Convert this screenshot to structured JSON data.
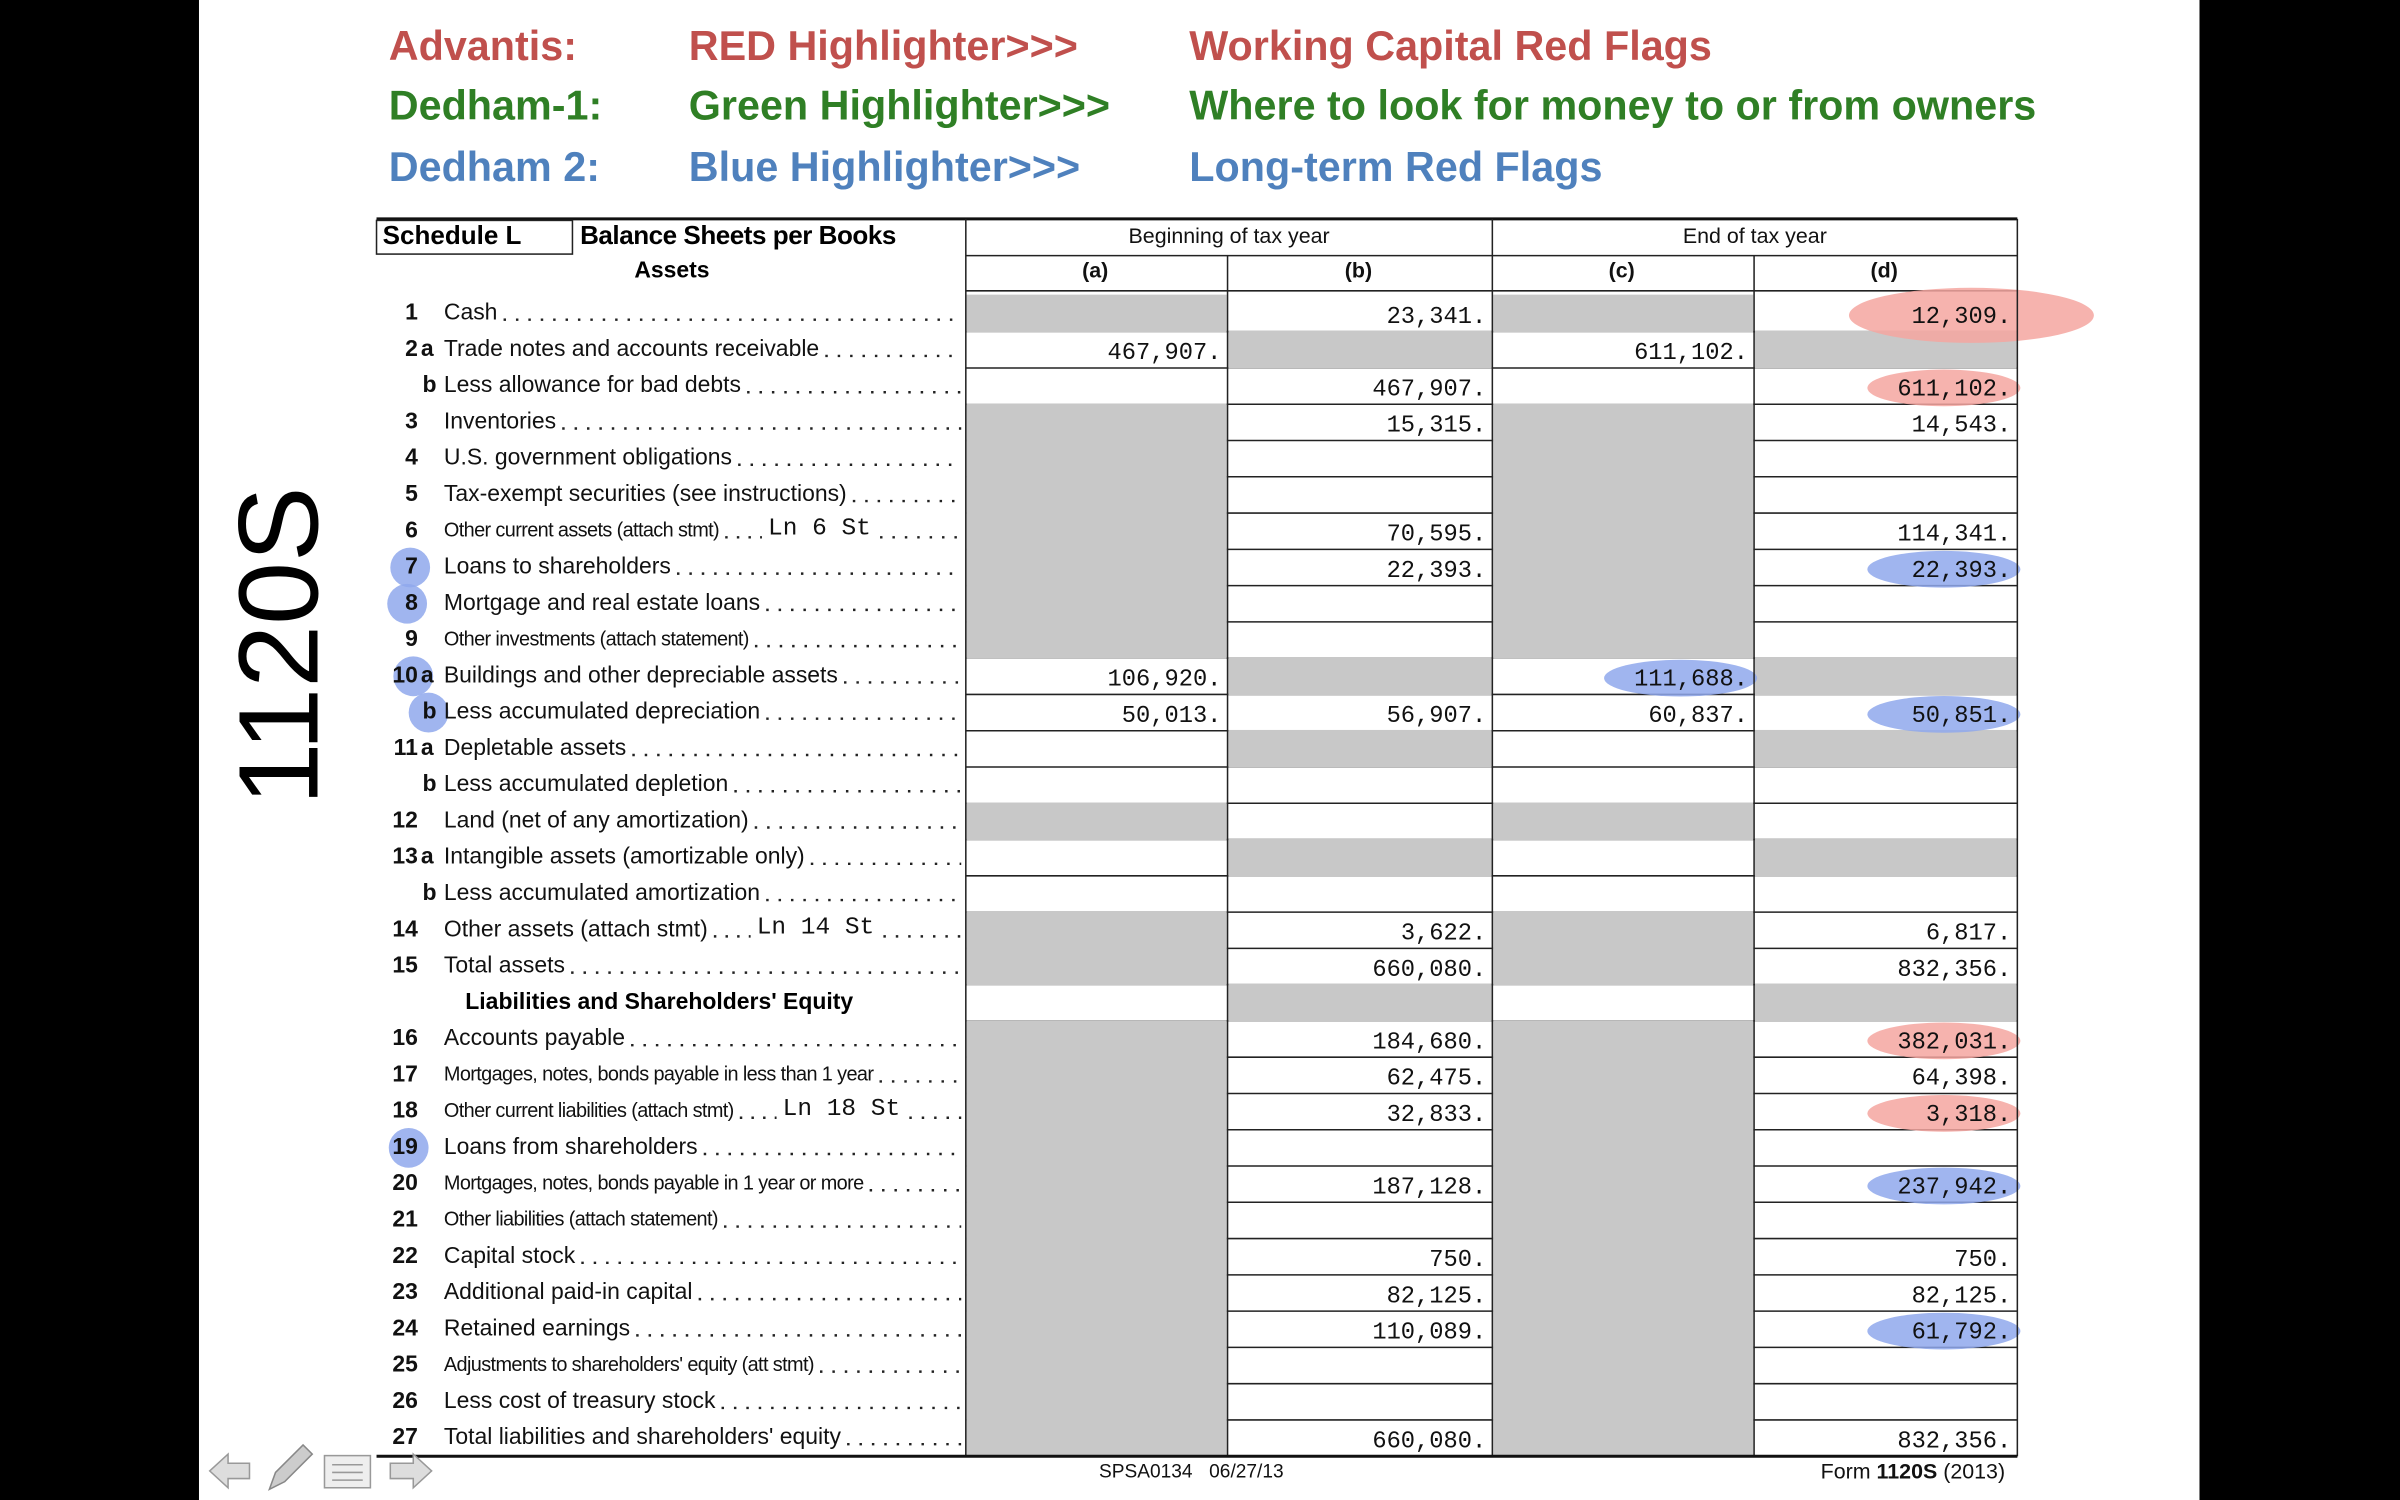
{
  "header": {
    "lines": [
      {
        "name": "Advantis:",
        "tool": "RED Highlighter>>>",
        "meaning": "Working Capital Red Flags"
      },
      {
        "name": "Dedham-1:",
        "tool": "Green Highlighter>>>",
        "meaning": "Where to look for money to or from owners"
      },
      {
        "name": "Dedham 2:",
        "tool": "Blue Highlighter>>>",
        "meaning": "Long-term Red Flags"
      }
    ]
  },
  "side_label": "1120S",
  "form": {
    "schedule": "Schedule L",
    "title": "Balance Sheets per Books",
    "column_groups": [
      "Beginning of tax year",
      "End of tax year"
    ],
    "columns": [
      "(a)",
      "(b)",
      "(c)",
      "(d)"
    ],
    "assets_heading": "Assets",
    "assets_rows": [
      {
        "num": "1",
        "label": "Cash",
        "b": "23,341.",
        "d": "12,309."
      },
      {
        "num": "2",
        "sub": "a",
        "label": "Trade notes and accounts receivable",
        "a": "467,907.",
        "c": "611,102."
      },
      {
        "sub": "b",
        "label": "Less allowance for bad debts",
        "b": "467,907.",
        "d": "611,102."
      },
      {
        "num": "3",
        "label": "Inventories",
        "b": "15,315.",
        "d": "14,543."
      },
      {
        "num": "4",
        "label": "U.S. government obligations"
      },
      {
        "num": "5",
        "label": "Tax-exempt securities (see instructions)"
      },
      {
        "num": "6",
        "label": "Other current assets (attach stmt)",
        "note": "Ln 6 St",
        "b": "70,595.",
        "d": "114,341."
      },
      {
        "num": "7",
        "label": "Loans to shareholders",
        "b": "22,393.",
        "d": "22,393."
      },
      {
        "num": "8",
        "label": "Mortgage and real estate loans"
      },
      {
        "num": "9",
        "label": "Other investments (attach statement)"
      },
      {
        "num": "10",
        "sub": "a",
        "label": "Buildings and other depreciable assets",
        "a": "106,920.",
        "c": "111,688."
      },
      {
        "sub": "b",
        "label": "Less accumulated depreciation",
        "a": "50,013.",
        "b": "56,907.",
        "c": "60,837.",
        "d": "50,851."
      },
      {
        "num": "11",
        "sub": "a",
        "label": "Depletable assets"
      },
      {
        "sub": "b",
        "label": "Less accumulated depletion"
      },
      {
        "num": "12",
        "label": "Land (net of any amortization)"
      },
      {
        "num": "13",
        "sub": "a",
        "label": "Intangible assets (amortizable only)"
      },
      {
        "sub": "b",
        "label": "Less accumulated amortization"
      },
      {
        "num": "14",
        "label": "Other assets (attach stmt)",
        "note": "Ln 14 St",
        "b": "3,622.",
        "d": "6,817."
      },
      {
        "num": "15",
        "label": "Total assets",
        "b": "660,080.",
        "d": "832,356."
      }
    ],
    "liabilities_heading": "Liabilities and Shareholders' Equity",
    "liability_rows": [
      {
        "num": "16",
        "label": "Accounts payable",
        "b": "184,680.",
        "d": "382,031."
      },
      {
        "num": "17",
        "label": "Mortgages, notes, bonds payable in less than 1 year",
        "b": "62,475.",
        "d": "64,398."
      },
      {
        "num": "18",
        "label": "Other current liabilities (attach stmt)",
        "note": "Ln 18 St",
        "b": "32,833.",
        "d": "3,318."
      },
      {
        "num": "19",
        "label": "Loans from shareholders"
      },
      {
        "num": "20",
        "label": "Mortgages, notes, bonds payable in 1 year or more",
        "b": "187,128.",
        "d": "237,942."
      },
      {
        "num": "21",
        "label": "Other liabilities (attach statement)"
      },
      {
        "num": "22",
        "label": "Capital stock",
        "b": "750.",
        "d": "750."
      },
      {
        "num": "23",
        "label": "Additional paid-in capital",
        "b": "82,125.",
        "d": "82,125."
      },
      {
        "num": "24",
        "label": "Retained earnings",
        "b": "110,089.",
        "d": "61,792."
      },
      {
        "num": "25",
        "label": "Adjustments to shareholders' equity (att stmt)"
      },
      {
        "num": "26",
        "label": "Less cost of treasury stock"
      },
      {
        "num": "27",
        "label": "Total liabilities and shareholders' equity",
        "b": "660,080.",
        "d": "832,356."
      }
    ],
    "footer": {
      "code": "SPSA0134",
      "date": "06/27/13",
      "form_prefix": "Form",
      "form_name": "1120S",
      "form_year": "(2013)"
    }
  }
}
